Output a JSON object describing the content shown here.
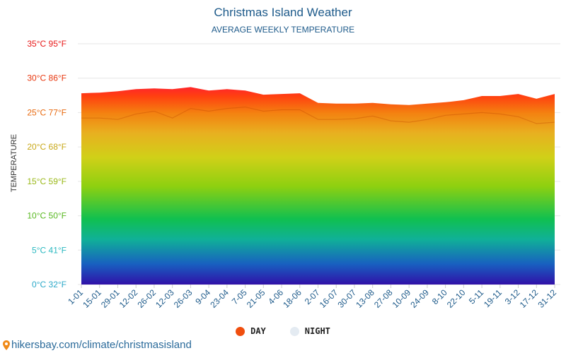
{
  "header": {
    "title": "Christmas Island Weather",
    "subtitle": "AVERAGE WEEKLY TEMPERATURE"
  },
  "legend": {
    "day_label": "DAY",
    "night_label": "NIGHT",
    "day_color": "#f04e0e",
    "night_color": "#e4ebf2"
  },
  "source": {
    "text": "hikersbay.com/climate/christmasisland",
    "icon": "location-pin-icon"
  },
  "chart_data": {
    "type": "area",
    "ylabel": "TEMPERATURE",
    "ylim": [
      0,
      35
    ],
    "yticks": [
      {
        "c": 0,
        "label": "0°C 32°F",
        "color": "#2aa8c8"
      },
      {
        "c": 5,
        "label": "5°C 41°F",
        "color": "#2ab8c0"
      },
      {
        "c": 10,
        "label": "10°C 50°F",
        "color": "#58b820"
      },
      {
        "c": 15,
        "label": "15°C 59°F",
        "color": "#9ab818"
      },
      {
        "c": 20,
        "label": "20°C 68°F",
        "color": "#c8a818"
      },
      {
        "c": 25,
        "label": "25°C 77°F",
        "color": "#e86a10"
      },
      {
        "c": 30,
        "label": "30°C 86°F",
        "color": "#e83810"
      },
      {
        "c": 35,
        "label": "35°C 95°F",
        "color": "#e81818"
      }
    ],
    "categories": [
      "1-01",
      "15-01",
      "29-01",
      "12-02",
      "26-02",
      "12-03",
      "26-03",
      "9-04",
      "23-04",
      "7-05",
      "21-05",
      "4-06",
      "18-06",
      "2-07",
      "16-07",
      "30-07",
      "13-08",
      "27-08",
      "10-09",
      "24-09",
      "8-10",
      "22-10",
      "5-11",
      "19-11",
      "3-12",
      "17-12",
      "31-12"
    ],
    "series": [
      {
        "name": "DAY",
        "values": [
          27.8,
          27.9,
          28.1,
          28.4,
          28.5,
          28.4,
          28.7,
          28.2,
          28.4,
          28.2,
          27.6,
          27.7,
          27.8,
          26.4,
          26.3,
          26.3,
          26.4,
          26.2,
          26.1,
          26.3,
          26.5,
          26.8,
          27.4,
          27.4,
          27.7,
          27.0,
          27.7
        ]
      },
      {
        "name": "NIGHT",
        "values": [
          24.2,
          24.2,
          24.0,
          24.8,
          25.2,
          24.2,
          25.6,
          25.2,
          25.6,
          25.8,
          25.2,
          25.4,
          25.4,
          24.0,
          24.0,
          24.1,
          24.5,
          23.8,
          23.6,
          24.0,
          24.6,
          24.8,
          25.0,
          24.8,
          24.4,
          23.4,
          23.6
        ]
      }
    ],
    "grid": true,
    "legend_position": "bottom-center"
  }
}
